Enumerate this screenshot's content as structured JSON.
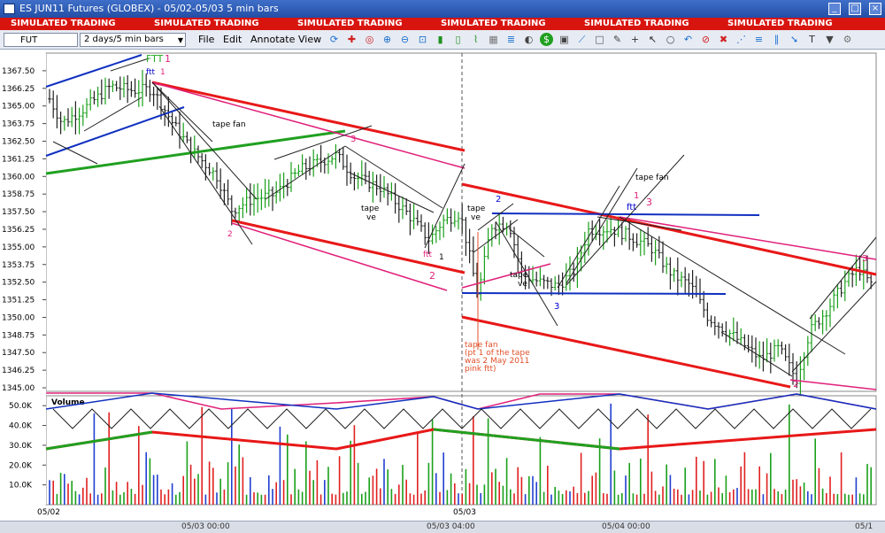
{
  "window": {
    "title": "ES JUN11 Futures (GLOBEX) - 05/02-05/03 5 min bars",
    "minimize": "_",
    "maximize": "□",
    "close": "×"
  },
  "banner": {
    "text": "SIMULATED TRADING",
    "repeat": 10
  },
  "toolbar": {
    "symbol_prefix": "ES",
    "symbol": "FUT",
    "interval": "2 days/5 min bars",
    "menus": [
      "File",
      "Edit",
      "Annotate",
      "View"
    ],
    "icons": [
      "refresh-icon",
      "crosshair-icon",
      "target-icon",
      "zoom-in-icon",
      "zoom-out-icon",
      "zoom-fit-icon",
      "bars-icon",
      "candles-icon",
      "line-chart-icon",
      "grid-icon",
      "bar-style-icon",
      "gauge-icon",
      "dollar-icon",
      "indicator-icon",
      "trend-icon",
      "box-icon",
      "pencil-icon",
      "plus-icon",
      "cursor-icon",
      "ellipse-icon",
      "undo-icon",
      "stop-icon",
      "delete-icon",
      "fan-icon",
      "fib-icon",
      "channel-icon",
      "arrow-icon",
      "text-icon",
      "color-icon",
      "settings-icon"
    ]
  },
  "chart_data": {
    "type": "bar",
    "price_axis": {
      "ticks": [
        "1367.50",
        "1366.25",
        "1365.00",
        "1363.75",
        "1362.50",
        "1361.25",
        "1360.00",
        "1358.75",
        "1357.50",
        "1356.25",
        "1355.00",
        "1353.75",
        "1352.50",
        "1351.25",
        "1350.00",
        "1348.75",
        "1347.50",
        "1346.25",
        "1345.00"
      ],
      "range": [
        1344.75,
        1368.75
      ]
    },
    "volume_axis": {
      "ticks": [
        "50.0K",
        "40.0K",
        "30.0K",
        "20.0K",
        "10.0K"
      ],
      "label": "Volume",
      "range": [
        0,
        55000
      ]
    },
    "time_axis": {
      "date_labels": [
        "05/02",
        "05/03"
      ],
      "time_labels": [
        "05/03 00:00",
        "05/03 04:00",
        "05/04 00:00",
        "05/1"
      ]
    },
    "annotations": [
      {
        "text": "FTT",
        "color": "#22aa22"
      },
      {
        "text": "1",
        "color": "#e0207a"
      },
      {
        "text": "ftt",
        "color": "#0000cc"
      },
      {
        "text": "1",
        "color": "#e0207a"
      },
      {
        "text": "tape fan",
        "color": "#000000"
      },
      {
        "text": "3",
        "color": "#e0207a"
      },
      {
        "text": "2",
        "color": "#e0207a"
      },
      {
        "text": "tape",
        "color": "#000000"
      },
      {
        "text": "ve",
        "color": "#000000"
      },
      {
        "text": "ftt",
        "color": "#e0207a"
      },
      {
        "text": "1",
        "color": "#000000"
      },
      {
        "text": "2",
        "color": "#e0207a"
      },
      {
        "text": "2",
        "color": "#0000cc"
      },
      {
        "text": "tape",
        "color": "#000000"
      },
      {
        "text": "ve",
        "color": "#000000"
      },
      {
        "text": "tape",
        "color": "#000000"
      },
      {
        "text": "ve",
        "color": "#000000"
      },
      {
        "text": "3",
        "color": "#0000cc"
      },
      {
        "text": "tape fan",
        "color": "#000000"
      },
      {
        "text": "1",
        "color": "#e0207a"
      },
      {
        "text": "ftt",
        "color": "#0000cc"
      },
      {
        "text": "3",
        "color": "#e0207a"
      },
      {
        "text": "tape fan",
        "color": "#e0502a"
      },
      {
        "text": "(pt 1 of the tape",
        "color": "#e0502a"
      },
      {
        "text": "was 2 May 2011",
        "color": "#e0502a"
      },
      {
        "text": "pink ftt)",
        "color": "#e0502a"
      },
      {
        "text": "3",
        "color": "#e0207a"
      },
      {
        "text": "2",
        "color": "#e0207a"
      }
    ]
  }
}
